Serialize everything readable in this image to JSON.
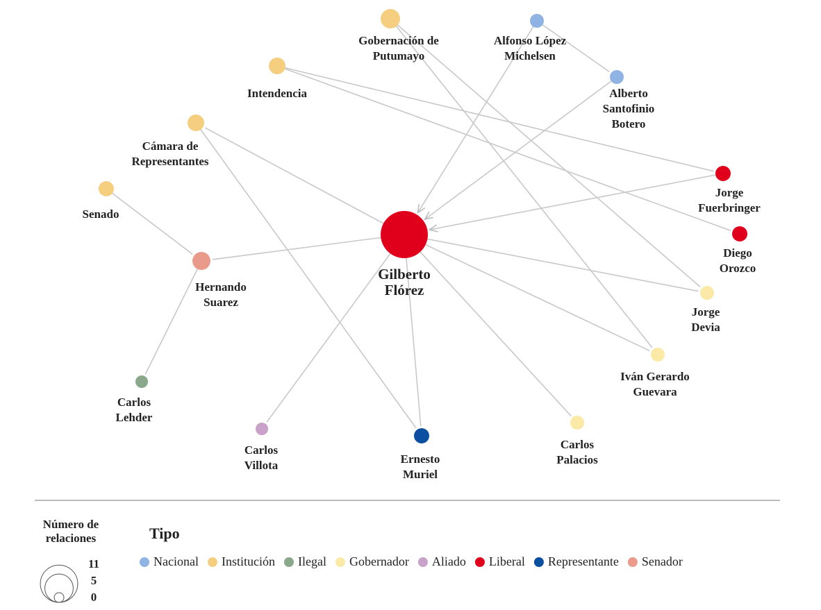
{
  "nodes": [
    {
      "label": [
        "Gilberto",
        "Flórez"
      ],
      "type": "Liberal"
    },
    {
      "label": [
        "Gobernación de",
        "Putumayo"
      ],
      "type": "Institución"
    },
    {
      "label": [
        "Alfonso López",
        "Michelsen"
      ],
      "type": "Nacional"
    },
    {
      "label": [
        "Intendencia"
      ],
      "type": "Institución"
    },
    {
      "label": [
        "Alberto",
        "Santofinio",
        "Botero"
      ],
      "type": "Nacional"
    },
    {
      "label": [
        "Cámara de",
        "Representantes"
      ],
      "type": "Institución"
    },
    {
      "label": [
        "Senado"
      ],
      "type": "Institución"
    },
    {
      "label": [
        "Jorge",
        "Fuerbringer"
      ],
      "type": "Liberal"
    },
    {
      "label": [
        "Diego",
        "Orozco"
      ],
      "type": "Liberal"
    },
    {
      "label": [
        "Hernando",
        "Suarez"
      ],
      "type": "Senador"
    },
    {
      "label": [
        "Jorge",
        "Devia"
      ],
      "type": "Gobernador"
    },
    {
      "label": [
        "Iván Gerardo",
        "Guevara"
      ],
      "type": "Gobernador"
    },
    {
      "label": [
        "Carlos",
        "Lehder"
      ],
      "type": "Ilegal"
    },
    {
      "label": [
        "Carlos",
        "Villota"
      ],
      "type": "Aliado"
    },
    {
      "label": [
        "Ernesto",
        "Muriel"
      ],
      "type": "Representante"
    },
    {
      "label": [
        "Carlos",
        "Palacios"
      ],
      "type": "Gobernador"
    }
  ],
  "edges": [
    [
      0,
      9
    ],
    [
      0,
      5
    ],
    [
      7,
      0
    ],
    [
      0,
      10
    ],
    [
      0,
      11
    ],
    [
      0,
      15
    ],
    [
      0,
      14
    ],
    [
      0,
      13
    ],
    [
      2,
      0
    ],
    [
      4,
      0
    ],
    [
      2,
      4
    ],
    [
      1,
      10
    ],
    [
      1,
      11
    ],
    [
      3,
      7
    ],
    [
      3,
      8
    ],
    [
      6,
      9
    ],
    [
      9,
      12
    ],
    [
      5,
      14
    ]
  ],
  "legend": {
    "title": "Tipo",
    "items": [
      {
        "name": "Nacional",
        "color": "#8fb4e3"
      },
      {
        "name": "Institución",
        "color": "#f5cf7f"
      },
      {
        "name": "Ilegal",
        "color": "#8aa88a"
      },
      {
        "name": "Gobernador",
        "color": "#fbe9a8"
      },
      {
        "name": "Aliado",
        "color": "#c9a2c9"
      },
      {
        "name": "Liberal",
        "color": "#e0001b"
      },
      {
        "name": "Representante",
        "color": "#0b4fa0"
      },
      {
        "name": "Senador",
        "color": "#e99a8a"
      }
    ]
  },
  "size_legend": {
    "title": [
      "Número de",
      "relaciones"
    ],
    "values": [
      11,
      5,
      0
    ]
  }
}
